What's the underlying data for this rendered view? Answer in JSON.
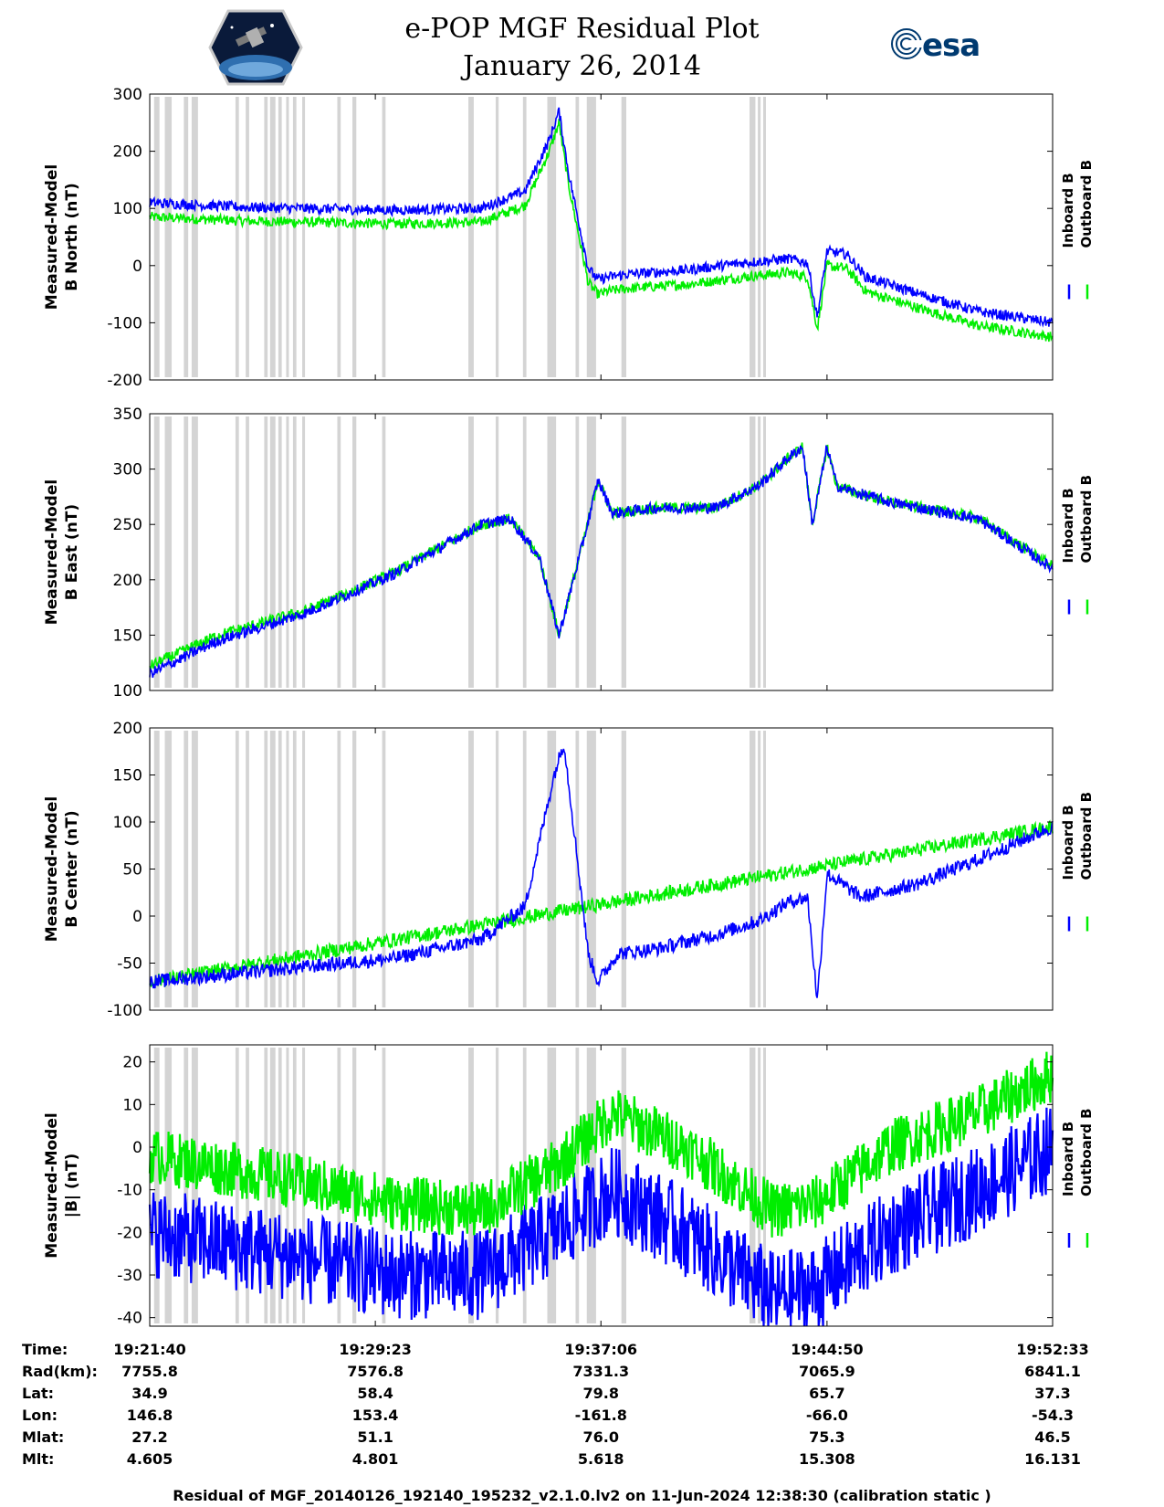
{
  "header": {
    "title": "e-POP MGF Residual Plot",
    "date": "January 26, 2014",
    "logo_left": "cassiope-mission-logo",
    "logo_right_text": "esa"
  },
  "colors": {
    "inboard": "#0000ff",
    "outboard": "#00ee00",
    "gap": "#d4d4d4"
  },
  "legend": {
    "inboard": "Inboard B",
    "outboard": "Outboard B"
  },
  "gaps_hhmmss": [
    [
      "19:21:49",
      "19:22:00"
    ],
    [
      "19:22:11",
      "19:22:25"
    ],
    [
      "19:22:50",
      "19:22:59"
    ],
    [
      "19:23:06",
      "19:23:19"
    ],
    [
      "19:24:36",
      "19:24:43"
    ],
    [
      "19:24:57",
      "19:25:04"
    ],
    [
      "19:25:35",
      "19:25:42"
    ],
    [
      "19:25:47",
      "19:25:58"
    ],
    [
      "19:26:04",
      "19:26:11"
    ],
    [
      "19:26:20",
      "19:26:24"
    ],
    [
      "19:26:34",
      "19:26:41"
    ],
    [
      "19:26:53",
      "19:26:58"
    ],
    [
      "19:28:05",
      "19:28:12"
    ],
    [
      "19:28:36",
      "19:28:44"
    ],
    [
      "19:29:37",
      "19:29:44"
    ],
    [
      "19:32:34",
      "19:32:45"
    ],
    [
      "19:33:30",
      "19:33:36"
    ],
    [
      "19:34:26",
      "19:34:33"
    ],
    [
      "19:35:16",
      "19:35:34"
    ],
    [
      "19:36:14",
      "19:36:21"
    ],
    [
      "19:36:37",
      "19:36:56"
    ],
    [
      "19:37:48",
      "19:37:58"
    ],
    [
      "19:42:11",
      "19:42:23"
    ],
    [
      "19:42:28",
      "19:42:32"
    ],
    [
      "19:42:39",
      "19:42:44"
    ]
  ],
  "chart_data": [
    {
      "type": "line",
      "ylabel": [
        "Measured-Model",
        "B North (nT)"
      ],
      "ylim": [
        -200,
        300
      ],
      "yticks": [
        "-200",
        "-100",
        "0",
        "100",
        "200",
        "300"
      ],
      "x_range": [
        "19:21:40",
        "19:52:33"
      ],
      "series": [
        {
          "name": "Inboard B",
          "x": [
            "19:21:40",
            "19:25:00",
            "19:30:00",
            "19:33:00",
            "19:34:30",
            "19:35:20",
            "19:35:40",
            "19:36:00",
            "19:36:40",
            "19:37:00",
            "19:37:20",
            "19:38:00",
            "19:40:00",
            "19:42:00",
            "19:43:30",
            "19:44:10",
            "19:44:30",
            "19:44:50",
            "19:45:30",
            "19:46:10",
            "19:48:00",
            "19:50:00",
            "19:52:33"
          ],
          "y": [
            110,
            102,
            97,
            100,
            130,
            220,
            270,
            160,
            -5,
            -25,
            -20,
            -15,
            -8,
            5,
            12,
            5,
            -90,
            25,
            20,
            -20,
            -50,
            -80,
            -100
          ]
        },
        {
          "name": "Outboard B",
          "x": [
            "19:21:40",
            "19:25:00",
            "19:30:00",
            "19:33:00",
            "19:34:30",
            "19:35:20",
            "19:35:40",
            "19:36:00",
            "19:36:40",
            "19:37:00",
            "19:37:20",
            "19:38:00",
            "19:40:00",
            "19:42:00",
            "19:43:30",
            "19:44:10",
            "19:44:30",
            "19:44:50",
            "19:45:30",
            "19:46:10",
            "19:48:00",
            "19:50:00",
            "19:52:33"
          ],
          "y": [
            85,
            78,
            73,
            76,
            105,
            200,
            250,
            140,
            -30,
            -50,
            -45,
            -40,
            -33,
            -20,
            -12,
            -20,
            -110,
            0,
            -5,
            -45,
            -75,
            -105,
            -125
          ]
        }
      ]
    },
    {
      "type": "line",
      "ylabel": [
        "Measured-Model",
        "B East (nT)"
      ],
      "ylim": [
        100,
        350
      ],
      "yticks": [
        "100",
        "150",
        "200",
        "250",
        "300",
        "350"
      ],
      "x_range": [
        "19:21:40",
        "19:52:33"
      ],
      "series": [
        {
          "name": "Inboard B",
          "x": [
            "19:21:40",
            "19:24:00",
            "19:27:00",
            "19:30:00",
            "19:33:00",
            "19:34:00",
            "19:35:00",
            "19:35:40",
            "19:36:30",
            "19:37:00",
            "19:37:30",
            "19:39:00",
            "19:41:00",
            "19:42:30",
            "19:43:30",
            "19:44:00",
            "19:44:20",
            "19:44:50",
            "19:45:10",
            "19:45:40",
            "19:47:00",
            "19:50:00",
            "19:52:33"
          ],
          "y": [
            115,
            145,
            170,
            205,
            250,
            255,
            220,
            150,
            235,
            290,
            260,
            265,
            265,
            285,
            310,
            320,
            250,
            320,
            285,
            280,
            270,
            255,
            210
          ]
        },
        {
          "name": "Outboard B",
          "x": [
            "19:21:40",
            "19:24:00",
            "19:27:00",
            "19:30:00",
            "19:33:00",
            "19:34:00",
            "19:35:00",
            "19:35:40",
            "19:36:30",
            "19:37:00",
            "19:37:30",
            "19:39:00",
            "19:41:00",
            "19:42:30",
            "19:43:30",
            "19:44:00",
            "19:44:20",
            "19:44:50",
            "19:45:10",
            "19:45:40",
            "19:47:00",
            "19:50:00",
            "19:52:33"
          ],
          "y": [
            122,
            150,
            172,
            206,
            250,
            255,
            220,
            150,
            235,
            290,
            260,
            265,
            265,
            285,
            310,
            320,
            250,
            320,
            285,
            280,
            270,
            256,
            212
          ]
        }
      ]
    },
    {
      "type": "line",
      "ylabel": [
        "Measured-Model",
        "B Center (nT)"
      ],
      "ylim": [
        -100,
        200
      ],
      "yticks": [
        "-100",
        "-50",
        "0",
        "50",
        "100",
        "150",
        "200"
      ],
      "x_range": [
        "19:21:40",
        "19:52:33"
      ],
      "series": [
        {
          "name": "Inboard B",
          "x": [
            "19:21:40",
            "19:25:00",
            "19:30:00",
            "19:33:00",
            "19:34:30",
            "19:35:30",
            "19:35:50",
            "19:36:40",
            "19:37:00",
            "19:37:40",
            "19:39:00",
            "19:41:00",
            "19:42:30",
            "19:43:30",
            "19:44:10",
            "19:44:30",
            "19:44:50",
            "19:46:00",
            "19:48:00",
            "19:50:00",
            "19:52:33"
          ],
          "y": [
            -70,
            -60,
            -45,
            -25,
            10,
            150,
            185,
            -40,
            -70,
            -40,
            -35,
            -20,
            -5,
            15,
            20,
            -90,
            45,
            20,
            35,
            60,
            95
          ]
        },
        {
          "name": "Outboard B",
          "x": [
            "19:21:40",
            "19:52:33"
          ],
          "y": [
            -70,
            95
          ]
        }
      ]
    },
    {
      "type": "line",
      "ylabel": [
        "Measured-Model",
        "|B| (nT)"
      ],
      "ylim": [
        -42,
        24
      ],
      "yticks": [
        "-40",
        "-30",
        "-20",
        "-10",
        "0",
        "10",
        "20"
      ],
      "x_range": [
        "19:21:40",
        "19:52:33"
      ],
      "series": [
        {
          "name": "Inboard B",
          "x": [
            "19:21:40",
            "19:26:00",
            "19:30:00",
            "19:33:00",
            "19:35:30",
            "19:37:30",
            "19:40:00",
            "19:43:00",
            "19:44:30",
            "19:47:00",
            "19:50:00",
            "19:52:33"
          ],
          "y": [
            -20,
            -25,
            -30,
            -30,
            -20,
            -10,
            -20,
            -35,
            -33,
            -20,
            -10,
            0
          ]
        },
        {
          "name": "Outboard B",
          "x": [
            "19:21:40",
            "19:26:00",
            "19:30:00",
            "19:33:00",
            "19:35:30",
            "19:37:30",
            "19:40:00",
            "19:43:00",
            "19:44:30",
            "19:47:00",
            "19:50:00",
            "19:52:33"
          ],
          "y": [
            -2,
            -7,
            -13,
            -15,
            -5,
            8,
            0,
            -15,
            -13,
            0,
            8,
            17
          ]
        }
      ]
    }
  ],
  "footer": {
    "rows": [
      {
        "label": "Time:",
        "values": [
          "19:21:40",
          "19:29:23",
          "19:37:06",
          "19:44:50",
          "19:52:33"
        ]
      },
      {
        "label": "Rad(km):",
        "values": [
          "7755.8",
          "7576.8",
          "7331.3",
          "7065.9",
          "6841.1"
        ]
      },
      {
        "label": "Lat:",
        "values": [
          "34.9",
          "58.4",
          "79.8",
          "65.7",
          "37.3"
        ]
      },
      {
        "label": "Lon:",
        "values": [
          "146.8",
          "153.4",
          "-161.8",
          "-66.0",
          "-54.3"
        ]
      },
      {
        "label": "Mlat:",
        "values": [
          "27.2",
          "51.1",
          "76.0",
          "75.3",
          "46.5"
        ]
      },
      {
        "label": "Mlt:",
        "values": [
          "4.605",
          "4.801",
          "5.618",
          "15.308",
          "16.131"
        ]
      }
    ],
    "note": "Residual of MGF_20140126_192140_195232_v2.1.0.lv2 on 11-Jun-2024 12:38:30 (calibration static )"
  }
}
